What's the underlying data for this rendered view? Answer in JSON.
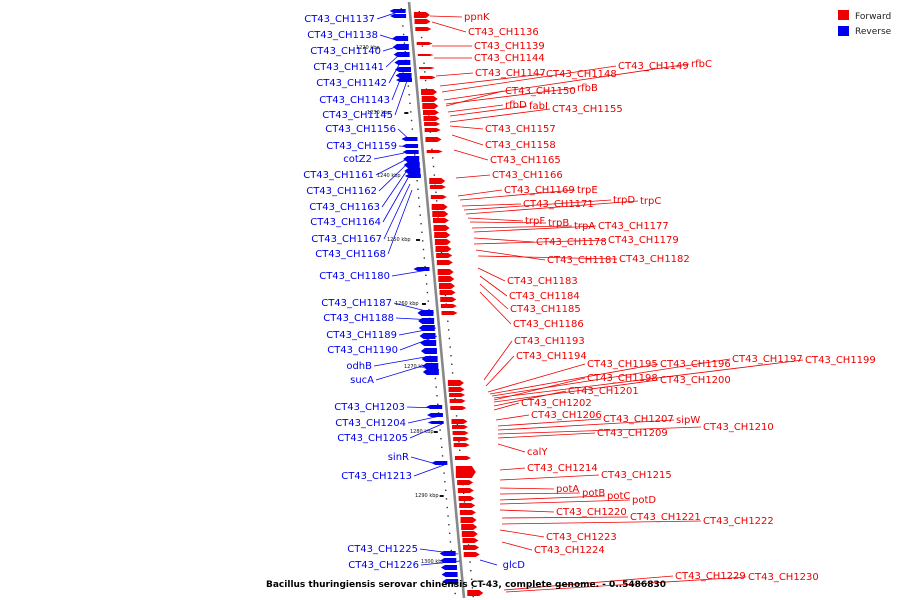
{
  "caption": "Bacillus thuringiensis serovar chinensis CT-43, complete genome. - 0..5486830",
  "legend": [
    {
      "label": "Forward",
      "color": "#ee0000"
    },
    {
      "label": "Reverse",
      "color": "#0000ee"
    }
  ],
  "colors": {
    "forward": "#ee0000",
    "reverse": "#0000ee",
    "axis": "#888888"
  },
  "ticks": [
    "1220 kbp",
    "1230 kbp",
    "1240 kbp",
    "1250 kbp",
    "1260 kbp",
    "1270 kbp",
    "1280 kbp",
    "1290 kbp",
    "1300 kbp"
  ],
  "reverse_labels": [
    "CT43_CH1137",
    "CT43_CH1138",
    "CT43_CH1140",
    "CT43_CH1141",
    "CT43_CH1142",
    "CT43_CH1143",
    "CT43_CH1145",
    "CT43_CH1156",
    "CT43_CH1159",
    "cotZ2",
    "CT43_CH1161",
    "CT43_CH1162",
    "CT43_CH1163",
    "CT43_CH1164",
    "CT43_CH1167",
    "CT43_CH1168",
    "CT43_CH1180",
    "CT43_CH1187",
    "CT43_CH1188",
    "CT43_CH1189",
    "CT43_CH1190",
    "odhB",
    "sucA",
    "CT43_CH1203",
    "CT43_CH1204",
    "CT43_CH1205",
    "sinR",
    "CT43_CH1213",
    "CT43_CH1225",
    "CT43_CH1226",
    "glcD"
  ],
  "forward_labels": [
    "ppnK",
    "CT43_CH1136",
    "CT43_CH1139",
    "CT43_CH1144",
    "CT43_CH1147",
    "CT43_CH1148",
    "CT43_CH1149",
    "rfbC",
    "rfbB",
    "CT43_CH1150",
    "rfbD",
    "fabI",
    "CT43_CH1155",
    "CT43_CH1157",
    "CT43_CH1158",
    "CT43_CH1165",
    "CT43_CH1166",
    "CT43_CH1169",
    "trpE",
    "CT43_CH1171",
    "trpD",
    "trpC",
    "trpF",
    "trpB",
    "trpA",
    "CT43_CH1177",
    "CT43_CH1178",
    "CT43_CH1179",
    "CT43_CH1181",
    "CT43_CH1182",
    "CT43_CH1183",
    "CT43_CH1184",
    "CT43_CH1185",
    "CT43_CH1186",
    "CT43_CH1193",
    "CT43_CH1194",
    "CT43_CH1195",
    "CT43_CH1196",
    "CT43_CH1197",
    "CT43_CH1199",
    "CT43_CH1198",
    "CT43_CH1200",
    "CT43_CH1201",
    "CT43_CH1202",
    "CT43_CH1206",
    "CT43_CH1207",
    "sipW",
    "CT43_CH1210",
    "CT43_CH1209",
    "calY",
    "CT43_CH1214",
    "CT43_CH1215",
    "potA",
    "potB",
    "potC",
    "potD",
    "CT43_CH1220",
    "CT43_CH1221",
    "CT43_CH1222",
    "CT43_CH1223",
    "CT43_CH1224",
    "CT43_CH1229",
    "CT43_CH1230"
  ]
}
